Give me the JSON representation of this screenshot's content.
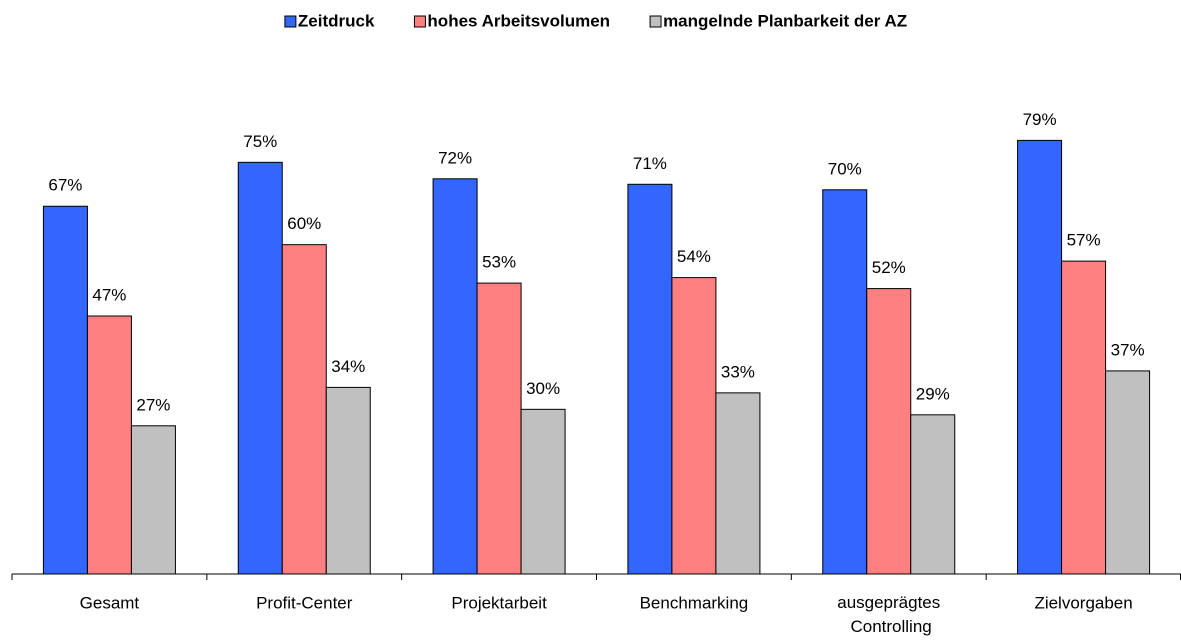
{
  "chart_data": {
    "type": "bar",
    "categories": [
      "Gesamt",
      "Profit-Center",
      "Projektarbeit",
      "Benchmarking",
      "ausgeprägtes Controlling",
      "Zielvorgaben"
    ],
    "series": [
      {
        "name": "Zeitdruck",
        "color": "#3366ff",
        "values": [
          67,
          75,
          72,
          71,
          70,
          79
        ],
        "value_labels": [
          "67%",
          "75%",
          "72%",
          "71%",
          "70%",
          "79%"
        ]
      },
      {
        "name": "hohes Arbeitsvolumen",
        "color": "#ff8080",
        "values": [
          47,
          60,
          53,
          54,
          52,
          57
        ],
        "value_labels": [
          "47%",
          "60%",
          "53%",
          "54%",
          "52%",
          "57%"
        ]
      },
      {
        "name": "mangelnde Planbarkeit der AZ",
        "color": "#c0c0c0",
        "values": [
          27,
          34,
          30,
          33,
          29,
          37
        ],
        "value_labels": [
          "27%",
          "34%",
          "30%",
          "33%",
          "29%",
          "37%"
        ]
      }
    ],
    "ylim": [
      0,
      90
    ],
    "legend": "top"
  }
}
